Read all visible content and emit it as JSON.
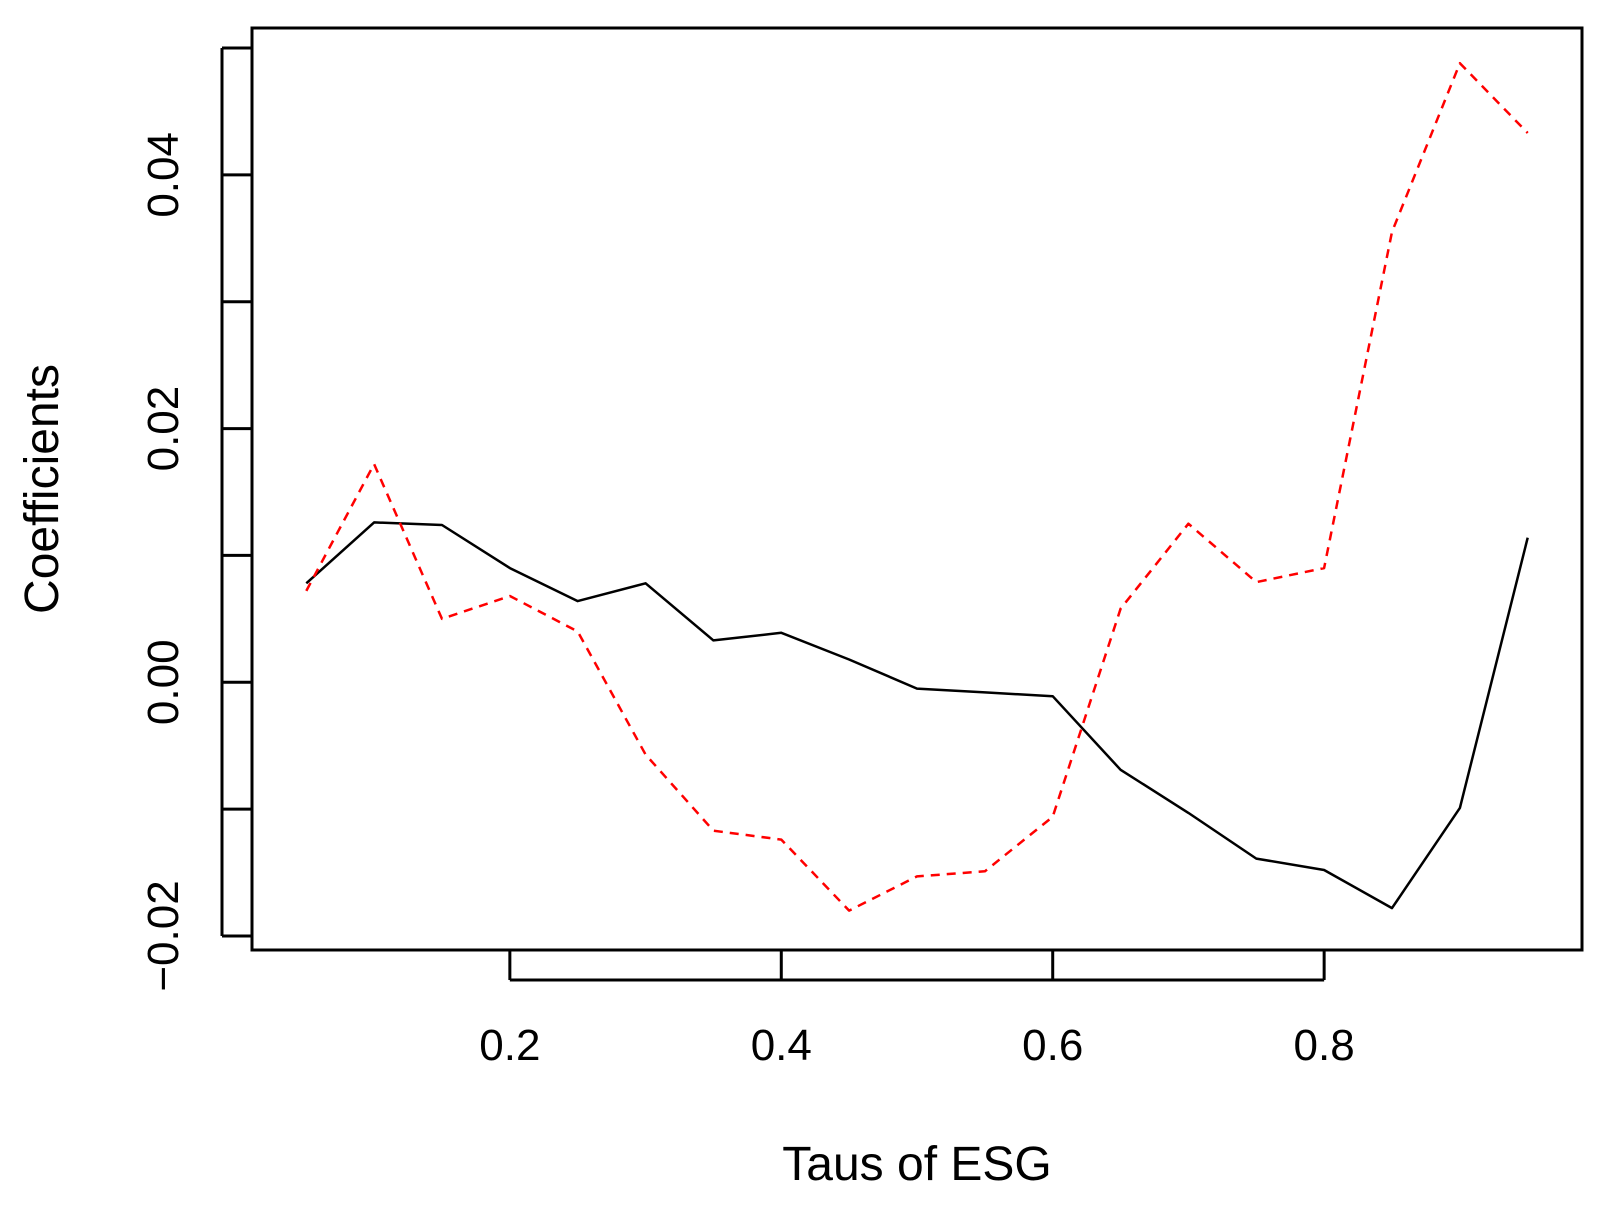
{
  "chart_data": {
    "type": "line",
    "title": "",
    "xlabel": "Taus of ESG",
    "ylabel": "Coefficients",
    "xlim": [
      0.01,
      0.99
    ],
    "ylim": [
      -0.02,
      0.05
    ],
    "xticks": [
      {
        "value": 0.2,
        "label": "0.2"
      },
      {
        "value": 0.4,
        "label": "0.4"
      },
      {
        "value": 0.6,
        "label": "0.6"
      },
      {
        "value": 0.8,
        "label": "0.8"
      }
    ],
    "yticks": [
      {
        "value": -0.02,
        "label": "−0.02"
      },
      {
        "value": -0.01,
        "label": ""
      },
      {
        "value": 0.0,
        "label": "0.00"
      },
      {
        "value": 0.01,
        "label": ""
      },
      {
        "value": 0.02,
        "label": "0.02"
      },
      {
        "value": 0.03,
        "label": ""
      },
      {
        "value": 0.04,
        "label": "0.04"
      },
      {
        "value": 0.05,
        "label": ""
      }
    ],
    "grid": false,
    "legend": "none",
    "x": [
      0.05,
      0.1,
      0.15,
      0.2,
      0.25,
      0.3,
      0.35,
      0.4,
      0.45,
      0.5,
      0.55,
      0.6,
      0.65,
      0.7,
      0.75,
      0.8,
      0.85,
      0.9,
      0.95
    ],
    "series": [
      {
        "color": "#000000",
        "style": "solid",
        "values": [
          0.0078,
          0.0126,
          0.0124,
          0.009,
          0.0064,
          0.0078,
          0.0033,
          0.0039,
          0.0018,
          -0.0005,
          -0.0008,
          -0.0011,
          -0.0069,
          -0.0103,
          -0.0139,
          -0.0148,
          -0.0178,
          -0.0099,
          0.0114
        ]
      },
      {
        "color": "#ff0000",
        "style": "dashed",
        "values": [
          0.0072,
          0.0172,
          0.005,
          0.0068,
          0.004,
          -0.0057,
          -0.0117,
          -0.0124,
          -0.018,
          -0.0153,
          -0.0149,
          -0.0106,
          0.0058,
          0.0125,
          0.0079,
          0.009,
          0.0355,
          0.0488,
          0.0433
        ]
      }
    ]
  }
}
